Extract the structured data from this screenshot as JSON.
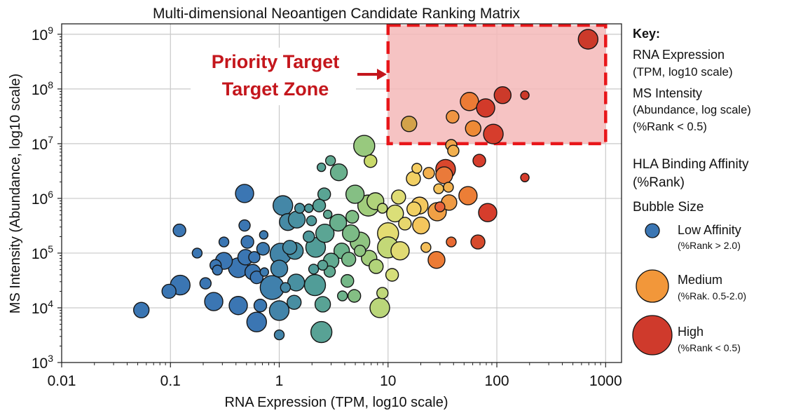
{
  "chart_data": {
    "type": "scatter",
    "title": "Multi-dimensional Neoantigen Candidate Ranking Matrix",
    "xlabel": "RNA Expression (TPM, log10 scale)",
    "ylabel": "MS Intensity (Abundance, log10 scale)",
    "x_scale": "log",
    "y_scale": "log",
    "xlim": [
      0.01,
      1400
    ],
    "ylim": [
      1000,
      1550000000
    ],
    "x_ticks": [
      {
        "value": 0.01,
        "label": "0.01"
      },
      {
        "value": 0.1,
        "label": "0.1"
      },
      {
        "value": 1,
        "label": "1"
      },
      {
        "value": 10,
        "label": "10"
      },
      {
        "value": 100,
        "label": "100"
      },
      {
        "value": 1000,
        "label": "1000"
      }
    ],
    "y_ticks": [
      {
        "value": 1000,
        "base": "10",
        "exp": "3"
      },
      {
        "value": 10000,
        "base": "10",
        "exp": "4"
      },
      {
        "value": 100000,
        "base": "10",
        "exp": "5"
      },
      {
        "value": 1000000,
        "base": "10",
        "exp": "6"
      },
      {
        "value": 10000000,
        "base": "10",
        "exp": "7"
      },
      {
        "value": 100000000,
        "base": "10",
        "exp": "8"
      },
      {
        "value": 1000000000,
        "base": "10",
        "exp": "9"
      }
    ],
    "grid": true,
    "colormap": [
      {
        "log_x": -0.2,
        "color": "#3b76b3"
      },
      {
        "log_x": 0.3,
        "color": "#4e9a9a"
      },
      {
        "log_x": 0.6,
        "color": "#6fb58a"
      },
      {
        "log_x": 0.85,
        "color": "#a8d07a"
      },
      {
        "log_x": 1.05,
        "color": "#d9e07a"
      },
      {
        "log_x": 1.25,
        "color": "#f4cf62"
      },
      {
        "log_x": 1.5,
        "color": "#f2a54a"
      },
      {
        "log_x": 1.75,
        "color": "#ec7b35"
      },
      {
        "log_x": 1.95,
        "color": "#d63d2c"
      }
    ],
    "point_fields": [
      "rna_tpm",
      "ms_intensity",
      "relative_bubble_size",
      "color_override"
    ],
    "points": [
      [
        0.054,
        9100,
        1.1
      ],
      [
        0.097,
        20000,
        1.0
      ],
      [
        0.123,
        26000,
        1.4
      ],
      [
        0.121,
        260000,
        0.9
      ],
      [
        0.176,
        100000,
        0.7
      ],
      [
        0.21,
        28000,
        0.8
      ],
      [
        0.25,
        13000,
        1.3
      ],
      [
        0.26,
        60000,
        0.8
      ],
      [
        0.27,
        49000,
        0.7
      ],
      [
        0.31,
        72000,
        1.2
      ],
      [
        0.31,
        160000,
        0.7
      ],
      [
        0.42,
        54000,
        1.4
      ],
      [
        0.42,
        11000,
        1.3
      ],
      [
        0.48,
        1230000,
        1.3
      ],
      [
        0.48,
        320000,
        0.8
      ],
      [
        0.51,
        160000,
        0.9
      ],
      [
        0.49,
        84000,
        1.1
      ],
      [
        0.59,
        84000,
        0.8
      ],
      [
        0.57,
        45000,
        1.1
      ],
      [
        0.62,
        36000,
        0.9
      ],
      [
        0.67,
        11000,
        0.9
      ],
      [
        0.62,
        5500,
        1.4
      ],
      [
        0.72,
        215000,
        0.6
      ],
      [
        0.71,
        120000,
        0.9
      ],
      [
        0.73,
        45000,
        0.6
      ],
      [
        1.08,
        740000,
        1.4
      ],
      [
        1.2,
        370000,
        1.2
      ],
      [
        1.45,
        410000,
        1.2
      ],
      [
        1.54,
        660000,
        0.7
      ],
      [
        1.03,
        97000,
        1.5
      ],
      [
        1.0,
        52000,
        1.2
      ],
      [
        0.86,
        23500,
        1.7
      ],
      [
        1.14,
        23500,
        0.7
      ],
      [
        1.43,
        29000,
        1.2
      ],
      [
        1.0,
        8900,
        1.4
      ],
      [
        1.37,
        12600,
        1.0
      ],
      [
        1.0,
        3200,
        0.7
      ],
      [
        1.25,
        127000,
        1.0
      ],
      [
        1.39,
        110000,
        1.2
      ],
      [
        6.04,
        9100000,
        1.5
      ],
      [
        6.9,
        4800000,
        0.9,
        "#c9d96a"
      ],
      [
        2.96,
        4900000,
        0.7
      ],
      [
        2.44,
        3700000,
        0.6
      ],
      [
        3.53,
        3000000,
        1.2
      ],
      [
        2.59,
        1190000,
        0.9
      ],
      [
        4.97,
        1190000,
        1.3
      ],
      [
        6.59,
        740000,
        1.5
      ],
      [
        7.65,
        890000,
        1.2
      ],
      [
        8.88,
        660000,
        0.7
      ],
      [
        11.6,
        530000,
        1.2
      ],
      [
        12.5,
        1060000,
        1.0
      ],
      [
        14.3,
        345000,
        0.9
      ],
      [
        2.33,
        740000,
        0.9
      ],
      [
        1.87,
        660000,
        0.6
      ],
      [
        2.79,
        510000,
        0.6
      ],
      [
        1.98,
        390000,
        0.7
      ],
      [
        3.48,
        360000,
        1.2
      ],
      [
        4.69,
        460000,
        0.9
      ],
      [
        2.63,
        230000,
        1.3
      ],
      [
        4.55,
        230000,
        1.2
      ],
      [
        5.52,
        160000,
        1.4
      ],
      [
        10,
        230000,
        1.5,
        "#e4dc72"
      ],
      [
        10,
        127000,
        1.5,
        "#c3d877"
      ],
      [
        12.9,
        110000,
        1.3
      ],
      [
        2.16,
        127000,
        1.4
      ],
      [
        1.87,
        200000,
        0.8
      ],
      [
        3.75,
        110000,
        1.1
      ],
      [
        5.52,
        110000,
        0.8
      ],
      [
        6.7,
        81000,
        1.1
      ],
      [
        4.35,
        77000,
        1.0
      ],
      [
        7.77,
        57000,
        1.0
      ],
      [
        3.0,
        72000,
        1.1
      ],
      [
        2.51,
        60000,
        0.7
      ],
      [
        2.07,
        51000,
        0.7
      ],
      [
        2.91,
        46000,
        0.8
      ],
      [
        2.13,
        26000,
        1.5
      ],
      [
        4.23,
        31000,
        0.9
      ],
      [
        10.9,
        40000,
        0.9
      ],
      [
        3.81,
        16500,
        0.7
      ],
      [
        4.9,
        16500,
        0.9
      ],
      [
        8.88,
        18600,
        0.8
      ],
      [
        8.4,
        10000,
        1.4
      ],
      [
        2.51,
        11600,
        1.1
      ],
      [
        2.44,
        3600,
        1.5
      ],
      [
        15.6,
        23000000,
        1.1,
        "#d3a24a"
      ],
      [
        39.2,
        31000000,
        0.9
      ],
      [
        56,
        59000000,
        1.3
      ],
      [
        78.9,
        45000000,
        1.3,
        "#d23a2a"
      ],
      [
        113,
        77000000,
        1.2,
        "#cc3a2a"
      ],
      [
        181,
        77000000,
        0.6,
        "#cc3a2a"
      ],
      [
        690,
        810000000,
        1.4,
        "#cc3a2a"
      ],
      [
        60.6,
        19000000,
        1.1,
        "#ee8a36"
      ],
      [
        92.9,
        15000000,
        1.4
      ],
      [
        38.1,
        9400000,
        0.8,
        "#f2a54a"
      ],
      [
        39.8,
        7400000,
        0.8,
        "#f2b04e"
      ],
      [
        69,
        4900000,
        0.9,
        "#d63d2c"
      ],
      [
        33.8,
        3400000,
        1.4,
        "#d9472d"
      ],
      [
        32.8,
        2650000,
        1.2,
        "#ea7a3a"
      ],
      [
        181,
        2400000,
        0.6,
        "#d63d2c"
      ],
      [
        18.4,
        3550000,
        0.7
      ],
      [
        23.7,
        2900000,
        0.8,
        "#f2b04e"
      ],
      [
        17.1,
        2300000,
        1.0
      ],
      [
        29.2,
        1500000,
        0.7,
        "#f4c25a"
      ],
      [
        35.9,
        1600000,
        0.7,
        "#f2b04e"
      ],
      [
        54.3,
        1120000,
        1.3
      ],
      [
        36.4,
        840000,
        1.1,
        "#ee9a44"
      ],
      [
        30,
        700000,
        0.7,
        "#e8623a"
      ],
      [
        28.3,
        570000,
        1.3,
        "#f0a045"
      ],
      [
        19.5,
        740000,
        1.2
      ],
      [
        17.3,
        640000,
        1.0
      ],
      [
        82.4,
        550000,
        1.3,
        "#d63d2c"
      ],
      [
        20.1,
        320000,
        1.2
      ],
      [
        22.3,
        127000,
        0.7
      ],
      [
        38.1,
        160000,
        0.7,
        "#e86a33"
      ],
      [
        67,
        160000,
        1.0,
        "#d64a2c"
      ],
      [
        27.9,
        75000,
        1.2,
        "#ec7b35"
      ]
    ],
    "highlight_zone": {
      "x_range": [
        10,
        1000
      ],
      "y_range": [
        10000000,
        1550000000
      ],
      "fill": "#f4b8b8",
      "border": "#e8161a"
    },
    "annotation": {
      "line1": "Priority Target",
      "line2": "Target Zone",
      "color": "#c4161c"
    },
    "legend": {
      "placement": "right",
      "key_title": "Key:",
      "rna_line1": "RNA Expression",
      "rna_line2": "(TPM, log10 scale)",
      "ms_line1": "MS Intensity",
      "ms_line2": "(Abundance, log  scale)",
      "ms_line3": "(%Rank < 0.5)",
      "hla_line1": "HLA Binding Affinity",
      "hla_line2": "(%Rank)",
      "size_title": "Bubble Size",
      "items": [
        {
          "label": "Low Affinity",
          "sub": "(%Rank > 2.0)",
          "color": "#3b76b3"
        },
        {
          "label": "Medium",
          "sub": "(%Rak. 0.5-2.0)",
          "color": "#f2973a"
        },
        {
          "label": "High",
          "sub": "(%Rank < 0.5)",
          "color": "#cf3a2c"
        }
      ]
    }
  }
}
